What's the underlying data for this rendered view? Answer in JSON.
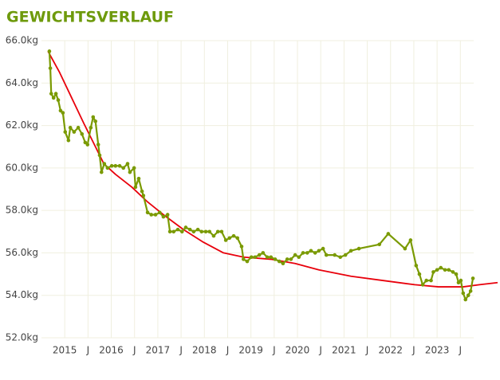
{
  "chart_data": {
    "type": "line",
    "title": "GEWICHTSVERLAUF",
    "xlim": [
      2014.5,
      2024.3
    ],
    "xticks": [
      2015,
      {
        "value": 2015.5,
        "label": "J"
      },
      2016,
      {
        "value": 2016.5,
        "label": "J"
      },
      2017,
      {
        "value": 2017.5,
        "label": "J"
      },
      2018,
      {
        "value": 2018.5,
        "label": "J"
      },
      2019,
      {
        "value": 2019.5,
        "label": "J"
      },
      2020,
      {
        "value": 2020.5,
        "label": "J"
      },
      2021,
      {
        "value": 2021.5,
        "label": "J"
      },
      2022,
      {
        "value": 2022.5,
        "label": "J"
      },
      2023,
      {
        "value": 2023.5,
        "label": "J"
      }
    ],
    "ylim": [
      52,
      66
    ],
    "yticks": [
      {
        "value": 52,
        "label": "52.0kg"
      },
      {
        "value": 54,
        "label": "54.0kg"
      },
      {
        "value": 56,
        "label": "56.0kg"
      },
      {
        "value": 58,
        "label": "58.0kg"
      },
      {
        "value": 60,
        "label": "60.0kg"
      },
      {
        "value": 62,
        "label": "62.0kg"
      },
      {
        "value": 64,
        "label": "64.0kg"
      },
      {
        "value": 66,
        "label": "66.0kg"
      }
    ],
    "grid": true,
    "series": [
      {
        "color": "#7a9a01",
        "markers": true,
        "x": [
          2014.67,
          2014.69,
          2014.71,
          2014.76,
          2014.81,
          2014.86,
          2014.91,
          2014.96,
          2015.01,
          2015.08,
          2015.12,
          2015.2,
          2015.29,
          2015.37,
          2015.44,
          2015.49,
          2015.56,
          2015.61,
          2015.66,
          2015.72,
          2015.75,
          2015.79,
          2015.85,
          2015.92,
          2016.01,
          2016.09,
          2016.18,
          2016.26,
          2016.35,
          2016.4,
          2016.49,
          2016.52,
          2016.59,
          2016.66,
          2016.69,
          2016.78,
          2016.86,
          2016.95,
          2017.04,
          2017.12,
          2017.21,
          2017.26,
          2017.34,
          2017.43,
          2017.52,
          2017.6,
          2017.69,
          2017.77,
          2017.86,
          2017.94,
          2018.03,
          2018.11,
          2018.2,
          2018.29,
          2018.37,
          2018.46,
          2018.54,
          2018.63,
          2018.71,
          2018.8,
          2018.84,
          2018.92,
          2019.01,
          2019.09,
          2019.18,
          2019.26,
          2019.35,
          2019.43,
          2019.52,
          2019.61,
          2019.69,
          2019.78,
          2019.86,
          2019.95,
          2020.03,
          2020.12,
          2020.21,
          2020.29,
          2020.38,
          2020.46,
          2020.55,
          2020.62,
          2020.8,
          2020.92,
          2021.03,
          2021.15,
          2021.32,
          2021.76,
          2021.95,
          2022.31,
          2022.43,
          2022.55,
          2022.62,
          2022.69,
          2022.77,
          2022.87,
          2022.92,
          2023.0,
          2023.08,
          2023.17,
          2023.25,
          2023.34,
          2023.41,
          2023.46,
          2023.51,
          2023.56,
          2023.61,
          2023.67,
          2023.72,
          2023.77
        ],
        "values": [
          65.5,
          64.7,
          63.5,
          63.3,
          63.5,
          63.2,
          62.7,
          62.6,
          61.7,
          61.3,
          61.9,
          61.7,
          61.9,
          61.6,
          61.2,
          61.1,
          61.9,
          62.4,
          62.2,
          61.1,
          60.6,
          59.8,
          60.2,
          60.0,
          60.1,
          60.1,
          60.1,
          60.0,
          60.2,
          59.8,
          60.0,
          59.1,
          59.5,
          58.9,
          58.7,
          57.9,
          57.8,
          57.8,
          57.9,
          57.7,
          57.8,
          57.0,
          57.0,
          57.1,
          57.0,
          57.2,
          57.1,
          57.0,
          57.1,
          57.0,
          57.0,
          57.0,
          56.8,
          57.0,
          57.0,
          56.6,
          56.7,
          56.8,
          56.7,
          56.3,
          55.7,
          55.6,
          55.8,
          55.8,
          55.9,
          56.0,
          55.8,
          55.8,
          55.7,
          55.6,
          55.5,
          55.7,
          55.7,
          55.9,
          55.8,
          56.0,
          56.0,
          56.1,
          56.0,
          56.1,
          56.2,
          55.9,
          55.9,
          55.8,
          55.9,
          56.1,
          56.2,
          56.4,
          56.9,
          56.2,
          56.6,
          55.4,
          55.0,
          54.5,
          54.7,
          54.7,
          55.1,
          55.2,
          55.3,
          55.2,
          55.2,
          55.1,
          55.0,
          54.6,
          54.7,
          54.1,
          53.8,
          54.0,
          54.2,
          54.8
        ]
      },
      {
        "color": "#e8000b",
        "markers": false,
        "x": [
          2014.64,
          2014.89,
          2015.15,
          2015.41,
          2015.66,
          2015.84,
          2016.09,
          2016.44,
          2016.78,
          2017.12,
          2017.55,
          2017.98,
          2018.41,
          2018.84,
          2019.43,
          2019.95,
          2020.46,
          2021.15,
          2021.83,
          2022.52,
          2023.03,
          2023.56,
          2023.91,
          2024.3
        ],
        "values": [
          65.5,
          64.5,
          63.3,
          62.1,
          61.0,
          60.2,
          59.7,
          59.1,
          58.4,
          57.8,
          57.1,
          56.5,
          56.0,
          55.8,
          55.7,
          55.5,
          55.2,
          54.9,
          54.7,
          54.5,
          54.4,
          54.4,
          54.5,
          54.6
        ]
      }
    ]
  }
}
